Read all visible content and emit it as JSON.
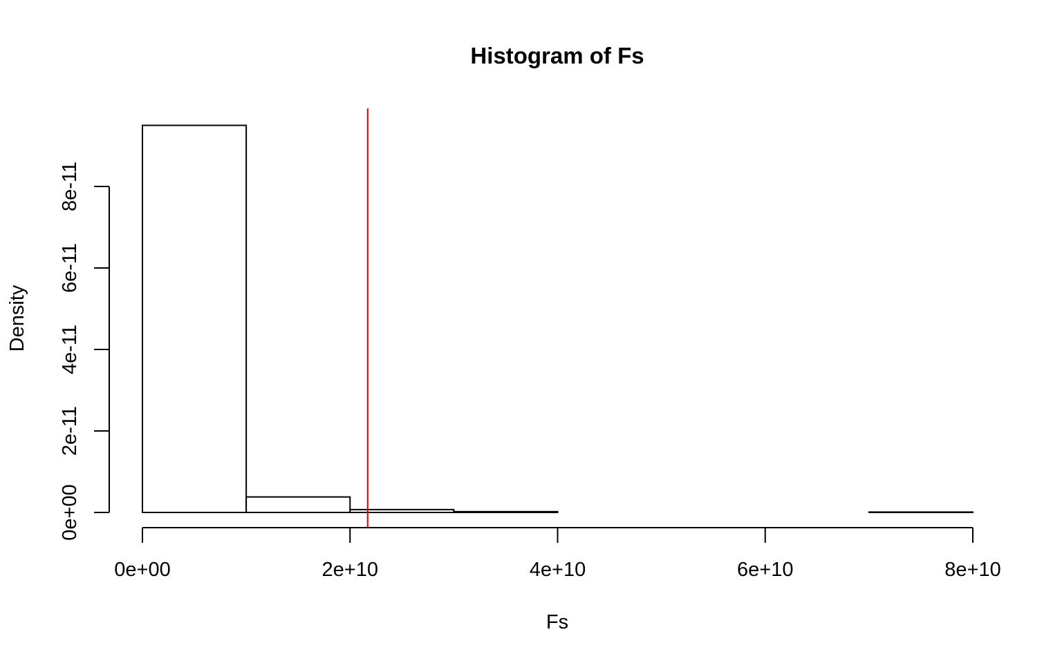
{
  "chart_data": {
    "type": "bar",
    "title": "Histogram of Fs",
    "xlabel": "Fs",
    "ylabel": "Density",
    "bins": [
      {
        "x0": 0,
        "x1": 10000000000,
        "density": 9.5e-11
      },
      {
        "x0": 10000000000,
        "x1": 20000000000,
        "density": 3.8e-12
      },
      {
        "x0": 20000000000,
        "x1": 30000000000,
        "density": 7e-13
      },
      {
        "x0": 30000000000,
        "x1": 40000000000,
        "density": 2e-13
      },
      {
        "x0": 40000000000,
        "x1": 50000000000,
        "density": 0
      },
      {
        "x0": 50000000000,
        "x1": 60000000000,
        "density": 0
      },
      {
        "x0": 60000000000,
        "x1": 70000000000,
        "density": 0
      },
      {
        "x0": 70000000000,
        "x1": 80000000000,
        "density": 1e-13
      }
    ],
    "vline": {
      "x": 21700000000,
      "color": "#e00000"
    },
    "xticks": [
      {
        "value": 0,
        "label": "0e+00"
      },
      {
        "value": 20000000000,
        "label": "2e+10"
      },
      {
        "value": 40000000000,
        "label": "4e+10"
      },
      {
        "value": 60000000000,
        "label": "6e+10"
      },
      {
        "value": 80000000000,
        "label": "8e+10"
      }
    ],
    "yticks": [
      {
        "value": 0,
        "label": "0e+00"
      },
      {
        "value": 2e-11,
        "label": "2e-11"
      },
      {
        "value": 4e-11,
        "label": "4e-11"
      },
      {
        "value": 6e-11,
        "label": "6e-11"
      },
      {
        "value": 8e-11,
        "label": "8e-11"
      }
    ],
    "xlim": [
      0,
      80000000000
    ],
    "ylim": [
      0,
      9.5e-11
    ],
    "bar_fill": "#ffffff",
    "bar_stroke": "#000000",
    "grid": false,
    "legend": "none"
  }
}
